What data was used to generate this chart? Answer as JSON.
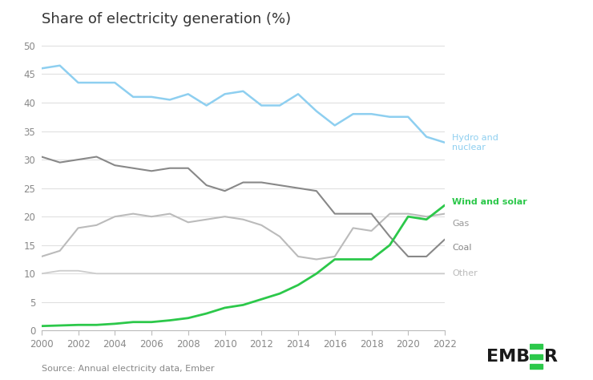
{
  "title": "Share of electricity generation (%)",
  "source": "Source: Annual electricity data, Ember",
  "years": [
    2000,
    2001,
    2002,
    2003,
    2004,
    2005,
    2006,
    2007,
    2008,
    2009,
    2010,
    2011,
    2012,
    2013,
    2014,
    2015,
    2016,
    2017,
    2018,
    2019,
    2020,
    2021,
    2022
  ],
  "hydro_nuclear": [
    46.0,
    46.5,
    43.5,
    43.5,
    43.5,
    41.0,
    41.0,
    40.5,
    41.5,
    39.5,
    41.5,
    42.0,
    39.5,
    39.5,
    41.5,
    38.5,
    36.0,
    38.0,
    38.0,
    37.5,
    37.5,
    34.0,
    33.0
  ],
  "gas": [
    13.0,
    14.0,
    18.0,
    18.5,
    20.0,
    20.5,
    20.0,
    20.5,
    19.0,
    19.5,
    20.0,
    19.5,
    18.5,
    16.5,
    13.0,
    12.5,
    13.0,
    18.0,
    17.5,
    20.5,
    20.5,
    20.0,
    20.5
  ],
  "coal": [
    30.5,
    29.5,
    30.0,
    30.5,
    29.0,
    28.5,
    28.0,
    28.5,
    28.5,
    25.5,
    24.5,
    26.0,
    26.0,
    25.5,
    25.0,
    24.5,
    20.5,
    20.5,
    20.5,
    16.5,
    13.0,
    13.0,
    16.0
  ],
  "other": [
    10.0,
    10.5,
    10.5,
    10.0,
    10.0,
    10.0,
    10.0,
    10.0,
    10.0,
    10.0,
    10.0,
    10.0,
    10.0,
    10.0,
    10.0,
    10.0,
    10.0,
    10.0,
    10.0,
    10.0,
    10.0,
    10.0,
    10.0
  ],
  "wind_solar": [
    0.8,
    0.9,
    1.0,
    1.0,
    1.2,
    1.5,
    1.5,
    1.8,
    2.2,
    3.0,
    4.0,
    4.5,
    5.5,
    6.5,
    8.0,
    10.0,
    12.5,
    12.5,
    12.5,
    15.0,
    20.0,
    19.5,
    22.0
  ],
  "hydro_nuclear_color": "#8ECFF0",
  "gas_color": "#BBBBBB",
  "coal_color": "#888888",
  "other_color": "#CCCCCC",
  "wind_solar_color": "#2CC84A",
  "ylim": [
    0,
    52
  ],
  "yticks": [
    0,
    5,
    10,
    15,
    20,
    25,
    30,
    35,
    40,
    45,
    50
  ],
  "background_color": "#FFFFFF",
  "grid_color": "#E0E0E0",
  "title_fontsize": 13,
  "label_hydro": "Hydro and\nnuclear",
  "label_wind": "Wind and solar",
  "label_gas": "Gas",
  "label_coal": "Coal",
  "label_other": "Other"
}
